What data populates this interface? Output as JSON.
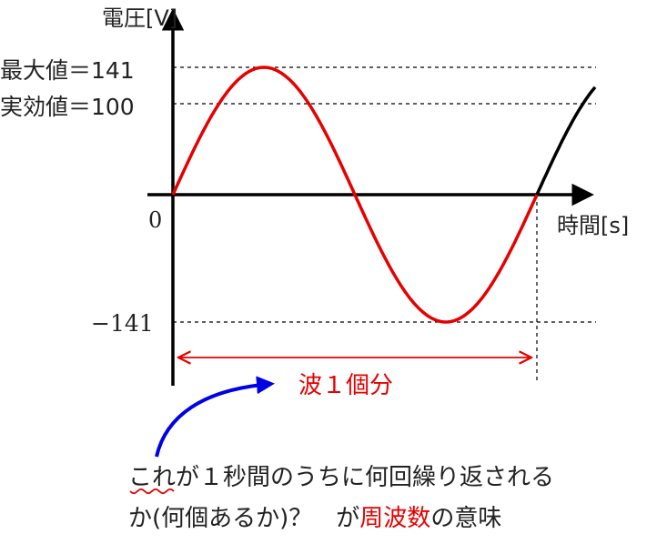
{
  "axes": {
    "y_label": "電圧[V]",
    "x_label": "時間[s]",
    "origin_label": "0"
  },
  "ticks": {
    "max_label": "最大値＝141",
    "rms_label": "実効値＝100",
    "min_label": "−141"
  },
  "values": {
    "max": 141,
    "rms": 100,
    "min": -141
  },
  "annotation": {
    "period_label": "波１個分"
  },
  "caption": {
    "line1_prefix": "これ",
    "line1_rest": "が１秒間のうちに何回繰り返される",
    "line2_prefix": "か(何個あるか)？　が",
    "line2_highlight": "周波数",
    "line2_suffix": "の意味"
  },
  "colors": {
    "wave": "#e60000",
    "wave_continuation": "#000000",
    "arrow": "#e60000",
    "pointer_arrow": "#0000e6",
    "squiggle": "#e60000",
    "highlight": "#e60000",
    "text": "#222222"
  }
}
